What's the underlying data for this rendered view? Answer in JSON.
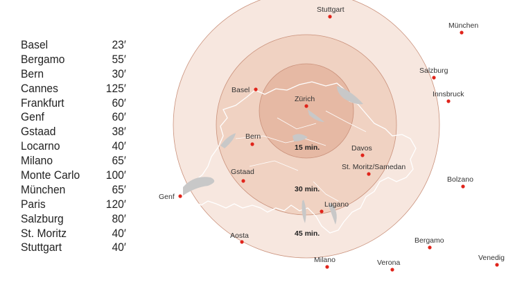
{
  "flight_times": [
    {
      "city": "Basel",
      "time": "23′"
    },
    {
      "city": "Bergamo",
      "time": "55′"
    },
    {
      "city": "Bern",
      "time": "30′"
    },
    {
      "city": "Cannes",
      "time": "125′"
    },
    {
      "city": "Frankfurt",
      "time": "60′"
    },
    {
      "city": "Genf",
      "time": "60′"
    },
    {
      "city": "Gstaad",
      "time": "38′"
    },
    {
      "city": "Locarno",
      "time": "40′"
    },
    {
      "city": "Milano",
      "time": "65′"
    },
    {
      "city": "Monte Carlo",
      "time": "100′"
    },
    {
      "city": "München",
      "time": "65′"
    },
    {
      "city": "Paris",
      "time": "120′"
    },
    {
      "city": "Salzburg",
      "time": "80′"
    },
    {
      "city": "St. Moritz",
      "time": "40′"
    },
    {
      "city": "Stuttgart",
      "time": "40′"
    }
  ],
  "rings": [
    {
      "label": "15 min."
    },
    {
      "label": "30 min."
    },
    {
      "label": "45 min."
    }
  ],
  "cities": {
    "stuttgart": "Stuttgart",
    "muenchen": "München",
    "salzburg": "Salzburg",
    "innsbruck": "Innsbruck",
    "basel": "Basel",
    "zuerich": "Zürich",
    "bern": "Bern",
    "davos": "Davos",
    "stmoritz": "St. Moritz/Samedan",
    "gstaad": "Gstaad",
    "bolzano": "Bolzano",
    "genf": "Genf",
    "lugano": "Lugano",
    "aosta": "Aosta",
    "bergamo": "Bergamo",
    "milano": "Milano",
    "verona": "Verona",
    "venedig": "Venedig"
  },
  "colors": {
    "dot": "#e0241b",
    "ring_outer": "#f7e7df",
    "ring_middle": "#f0d2c2",
    "ring_inner": "#e6b9a4",
    "ring_stroke": "#c9907a"
  }
}
